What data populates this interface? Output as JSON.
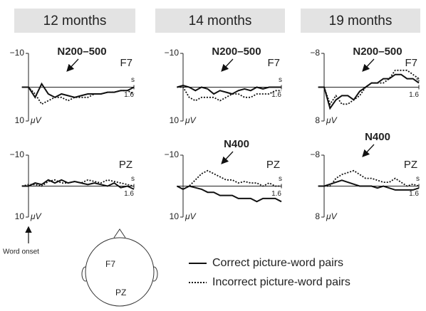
{
  "chart_data": [
    {
      "type": "line",
      "title": "12 months",
      "electrode": "F7",
      "annotation": "N200–500",
      "y_inverted": true,
      "x": [
        -0.1,
        0,
        0.1,
        0.2,
        0.3,
        0.4,
        0.5,
        0.6,
        0.7,
        0.8,
        0.9,
        1.0,
        1.1,
        1.2,
        1.3,
        1.4,
        1.5,
        1.6
      ],
      "xlim": [
        -0.1,
        1.6
      ],
      "xticks": [
        1.6
      ],
      "x_label": "s",
      "ylim": [
        -10,
        10
      ],
      "yticks": [
        {
          "value": -10,
          "label": "−10"
        },
        {
          "value": 10,
          "label": "10"
        }
      ],
      "y_unit": "μV",
      "series": [
        {
          "name": "Correct picture-word pairs",
          "color": "#111111",
          "dash": "solid",
          "values": [
            0,
            0,
            3,
            -1,
            2,
            3,
            2,
            2.5,
            3,
            2.5,
            2,
            2,
            2,
            1.5,
            1.5,
            1,
            1,
            0
          ]
        },
        {
          "name": "Incorrect picture-word pairs",
          "color": "#111111",
          "dash": "dotted",
          "values": [
            0,
            0,
            2,
            5,
            4,
            3,
            3,
            4,
            3,
            3,
            3,
            2,
            2,
            1.5,
            1.5,
            1,
            1,
            2
          ]
        }
      ]
    },
    {
      "type": "line",
      "title": "14 months",
      "electrode": "F7",
      "annotation": "N200–500",
      "y_inverted": true,
      "x": [
        -0.1,
        0,
        0.1,
        0.2,
        0.3,
        0.4,
        0.5,
        0.6,
        0.7,
        0.8,
        0.9,
        1.0,
        1.1,
        1.2,
        1.3,
        1.4,
        1.5,
        1.6
      ],
      "xlim": [
        -0.1,
        1.6
      ],
      "xticks": [
        1.6
      ],
      "x_label": "s",
      "ylim": [
        -10,
        10
      ],
      "yticks": [
        {
          "value": -10,
          "label": "−10"
        },
        {
          "value": 10,
          "label": "10"
        }
      ],
      "y_unit": "μV",
      "series": [
        {
          "name": "Correct picture-word pairs",
          "color": "#111111",
          "dash": "solid",
          "values": [
            0,
            -0.5,
            0,
            1,
            0,
            0.5,
            2,
            1,
            1.5,
            2,
            1,
            0.5,
            1,
            0,
            0.5,
            0,
            0,
            0
          ]
        },
        {
          "name": "Incorrect picture-word pairs",
          "color": "#111111",
          "dash": "dotted",
          "values": [
            0,
            0,
            3,
            4,
            3,
            3,
            3,
            4,
            3,
            2,
            2,
            3,
            3,
            2,
            2,
            2,
            1,
            1
          ]
        }
      ]
    },
    {
      "type": "line",
      "title": "19 months",
      "electrode": "F7",
      "annotation": "N200–500",
      "y_inverted": true,
      "x": [
        -0.1,
        0,
        0.1,
        0.2,
        0.3,
        0.4,
        0.5,
        0.6,
        0.7,
        0.8,
        0.9,
        1.0,
        1.1,
        1.2,
        1.3,
        1.4,
        1.5,
        1.6
      ],
      "xlim": [
        -0.1,
        1.6
      ],
      "xticks": [
        1.6
      ],
      "x_label": "s",
      "ylim": [
        -8,
        8
      ],
      "yticks": [
        {
          "value": -8,
          "label": "−8"
        },
        {
          "value": 8,
          "label": "8"
        }
      ],
      "y_unit": "μV",
      "series": [
        {
          "name": "Correct picture-word pairs",
          "color": "#111111",
          "dash": "solid",
          "values": [
            0,
            0,
            5,
            3,
            2,
            2,
            3,
            1,
            0,
            -1,
            -1,
            -2,
            -2,
            -3,
            -3,
            -2,
            -2,
            -1
          ]
        },
        {
          "name": "Incorrect picture-word pairs",
          "color": "#111111",
          "dash": "dotted",
          "values": [
            0,
            0,
            4,
            2,
            4,
            4,
            3,
            2,
            0,
            -1,
            -1,
            -1,
            -2,
            -4,
            -4,
            -4,
            -3,
            -2
          ]
        }
      ]
    },
    {
      "type": "line",
      "electrode": "PZ",
      "y_inverted": true,
      "x": [
        -0.1,
        0,
        0.1,
        0.2,
        0.3,
        0.4,
        0.5,
        0.6,
        0.7,
        0.8,
        0.9,
        1.0,
        1.1,
        1.2,
        1.3,
        1.4,
        1.5,
        1.6
      ],
      "xlim": [
        -0.1,
        1.6
      ],
      "xticks": [
        1.6
      ],
      "x_label": "s",
      "ylim": [
        -10,
        10
      ],
      "yticks": [
        {
          "value": -10,
          "label": "−10"
        },
        {
          "value": 10,
          "label": "10"
        }
      ],
      "y_unit": "μV",
      "series": [
        {
          "name": "Correct picture-word pairs",
          "color": "#111111",
          "dash": "solid",
          "values": [
            0,
            0,
            -1,
            -0.5,
            -2,
            -1,
            -2,
            -1,
            -1.5,
            -1,
            -0.5,
            -1,
            -0.5,
            0,
            -1,
            0.5,
            0,
            1
          ]
        },
        {
          "name": "Incorrect picture-word pairs",
          "color": "#111111",
          "dash": "dotted",
          "values": [
            0,
            -0.5,
            -0.5,
            0,
            -1.5,
            -2,
            -1,
            -1,
            -1.5,
            -1,
            -2,
            -1.5,
            -1,
            -2,
            -1.5,
            -1,
            -0.5,
            0
          ]
        }
      ]
    },
    {
      "type": "line",
      "electrode": "PZ",
      "annotation": "N400",
      "y_inverted": true,
      "x": [
        -0.1,
        0,
        0.1,
        0.2,
        0.3,
        0.4,
        0.5,
        0.6,
        0.7,
        0.8,
        0.9,
        1.0,
        1.1,
        1.2,
        1.3,
        1.4,
        1.5,
        1.6
      ],
      "xlim": [
        -0.1,
        1.6
      ],
      "xticks": [
        1.6
      ],
      "x_label": "s",
      "ylim": [
        -10,
        10
      ],
      "yticks": [
        {
          "value": -10,
          "label": "−10"
        },
        {
          "value": 10,
          "label": "10"
        }
      ],
      "y_unit": "μV",
      "series": [
        {
          "name": "Correct picture-word pairs",
          "color": "#111111",
          "dash": "solid",
          "values": [
            0,
            1,
            0,
            0.5,
            1,
            2,
            2,
            3,
            3,
            3,
            4,
            4,
            4,
            5,
            4,
            4,
            4,
            5
          ]
        },
        {
          "name": "Incorrect picture-word pairs",
          "color": "#111111",
          "dash": "dotted",
          "values": [
            0,
            1,
            0,
            -2,
            -4,
            -5,
            -4,
            -3,
            -2,
            -2,
            -1,
            -1.5,
            -1,
            -1,
            0,
            -1,
            0,
            0
          ]
        }
      ]
    },
    {
      "type": "line",
      "electrode": "PZ",
      "annotation": "N400",
      "y_inverted": true,
      "x": [
        -0.1,
        0,
        0.1,
        0.2,
        0.3,
        0.4,
        0.5,
        0.6,
        0.7,
        0.8,
        0.9,
        1.0,
        1.1,
        1.2,
        1.3,
        1.4,
        1.5,
        1.6
      ],
      "xlim": [
        -0.1,
        1.6
      ],
      "xticks": [
        1.6
      ],
      "x_label": "s",
      "ylim": [
        -8,
        8
      ],
      "yticks": [
        {
          "value": -8,
          "label": "−8"
        },
        {
          "value": 8,
          "label": "8"
        }
      ],
      "y_unit": "μV",
      "series": [
        {
          "name": "Correct picture-word pairs",
          "color": "#111111",
          "dash": "solid",
          "values": [
            0,
            0,
            -0.5,
            -1,
            -1.5,
            -1,
            -0.5,
            0,
            0,
            0,
            0.5,
            0,
            0.5,
            1,
            1,
            1,
            1,
            0.5
          ]
        },
        {
          "name": "Incorrect picture-word pairs",
          "color": "#111111",
          "dash": "dotted",
          "values": [
            0,
            0,
            0,
            -2,
            -3,
            -3.5,
            -4,
            -3,
            -2,
            -2,
            -1.5,
            -1,
            -1,
            -2,
            -1,
            0,
            -0.5,
            0
          ]
        }
      ]
    }
  ],
  "word_onset": "Word onset",
  "head": {
    "labels": [
      "F7",
      "PZ"
    ]
  }
}
